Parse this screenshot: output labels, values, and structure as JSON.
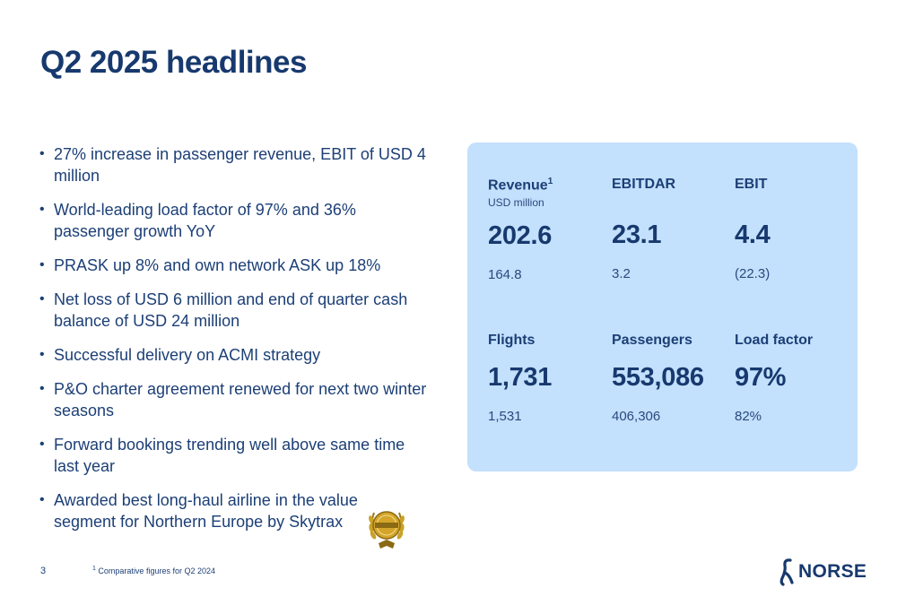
{
  "title": "Q2 2025 headlines",
  "bullets": [
    "27% increase in passenger revenue, EBIT of USD 4 million",
    "World-leading load factor of 97% and 36% passenger growth YoY",
    "PRASK up 8% and own network ASK up 18%",
    "Net loss of USD 6 million and end of quarter cash balance of USD 24 million",
    "Successful delivery on ACMI strategy",
    "P&O charter agreement renewed for next two winter seasons",
    "Forward bookings trending well above same time last year",
    "Awarded best long-haul airline in the value segment for Northern Europe by Skytrax"
  ],
  "kpis": {
    "revenue": {
      "label": "Revenue",
      "sup": "1",
      "sub": "USD million",
      "value": "202.6",
      "prior": "164.8"
    },
    "ebitdar": {
      "label": "EBITDAR",
      "value": "23.1",
      "prior": "3.2"
    },
    "ebit": {
      "label": "EBIT",
      "value": "4.4",
      "prior": "(22.3)"
    },
    "flights": {
      "label": "Flights",
      "value": "1,731",
      "prior": "1,531"
    },
    "passengers": {
      "label": "Passengers",
      "value": "553,086",
      "prior": "406,306"
    },
    "load_factor": {
      "label": "Load factor",
      "value": "97%",
      "prior": "82%"
    }
  },
  "footer": {
    "page_number": "3",
    "footnote_marker": "1",
    "footnote": "Comparative figures for Q2 2024",
    "logo_text": "NORSE"
  },
  "colors": {
    "primary": "#17396e",
    "card_background": "#c3e0fd",
    "gold": "#c9a227"
  },
  "icons": {
    "award": "skytrax-award-laurel-icon",
    "logo": "norse-logo-mark-icon"
  }
}
